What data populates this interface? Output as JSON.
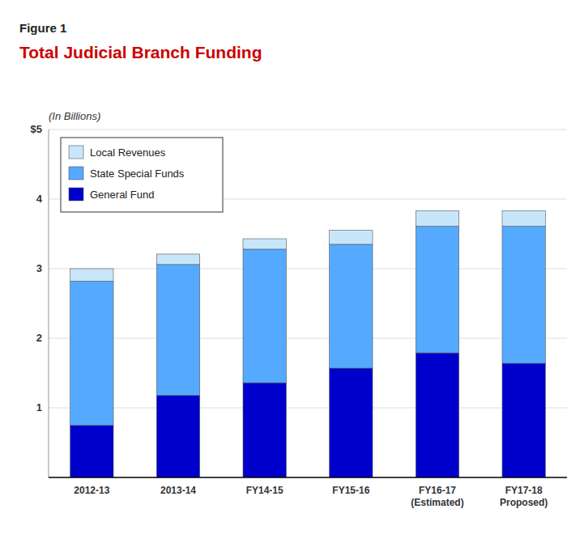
{
  "chart_data": {
    "type": "bar",
    "stacked": true,
    "subtitle": "Figure 1",
    "title": "Total Judicial Branch Funding",
    "annotations": [
      "(In Billions)"
    ],
    "categories": [
      "2012-13",
      "2013-14",
      "FY14-15",
      "FY15-16",
      "FY16-17\n(Estimated)",
      "FY17-18\nProposed)"
    ],
    "series": [
      {
        "name": "General Fund",
        "color": "#0000CC",
        "values": [
          0.75,
          1.18,
          1.36,
          1.57,
          1.79,
          1.64
        ]
      },
      {
        "name": "State Special Funds",
        "color": "#55AAFF",
        "values": [
          2.07,
          1.88,
          1.92,
          1.78,
          1.82,
          1.97
        ]
      },
      {
        "name": "Local Revenues",
        "color": "#C8E6FA",
        "values": [
          0.18,
          0.15,
          0.15,
          0.2,
          0.22,
          0.22
        ]
      }
    ],
    "ylim": [
      0,
      5.0
    ],
    "yticks": [
      1,
      2,
      3,
      4,
      {
        "value": 5,
        "label": "$5"
      }
    ],
    "grid": true,
    "legend": "upper left"
  }
}
